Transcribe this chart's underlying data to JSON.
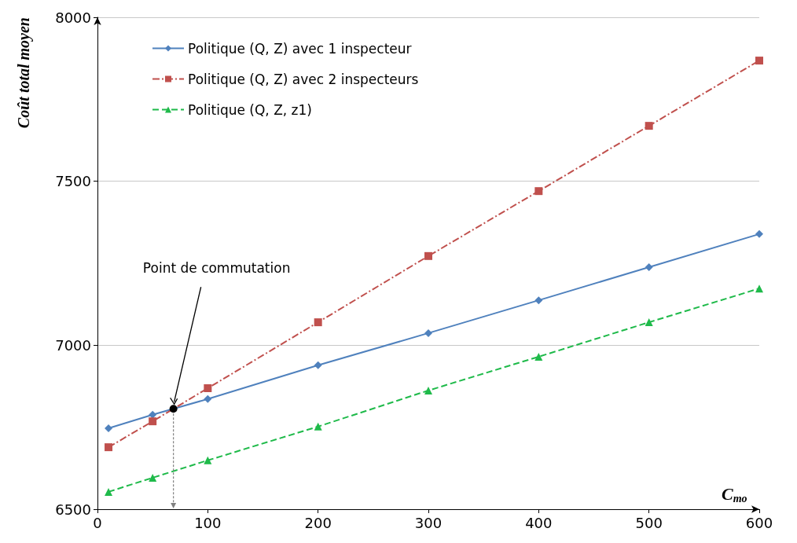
{
  "chart_data": {
    "type": "line",
    "xlabel": "C$_{mo}$",
    "ylabel": "Coût total moyen",
    "x": [
      10,
      50,
      100,
      200,
      300,
      400,
      500,
      600
    ],
    "xlim": [
      0,
      600
    ],
    "xticks": [
      0,
      100,
      200,
      300,
      400,
      500,
      600
    ],
    "ylim": [
      6500,
      8000
    ],
    "yticks": [
      6500,
      7000,
      7500,
      8000
    ],
    "grid": "y",
    "legend": "top left",
    "series": [
      {
        "name": "Politique (Q, Z) avec 1 inspecteur",
        "color": "#4f81bd",
        "marker": "diamond",
        "line_style": "solid",
        "values": [
          6747,
          6788,
          6836,
          6939,
          7037,
          7137,
          7238,
          7339
        ]
      },
      {
        "name": "Politique (Q, Z) avec 2 inspecteurs",
        "color": "#c0504d",
        "marker": "square",
        "line_style": "dashdot",
        "values": [
          6689,
          6768,
          6869,
          7070,
          7272,
          7470,
          7669,
          7868
        ]
      },
      {
        "name": "Politique (Q, Z, z1)",
        "color": "#1fba4a",
        "marker": "triangle",
        "line_style": "dashed",
        "values": [
          6553,
          6596,
          6649,
          6752,
          6862,
          6965,
          7070,
          7173
        ]
      }
    ],
    "annotations": [
      "Point de commutation"
    ]
  }
}
